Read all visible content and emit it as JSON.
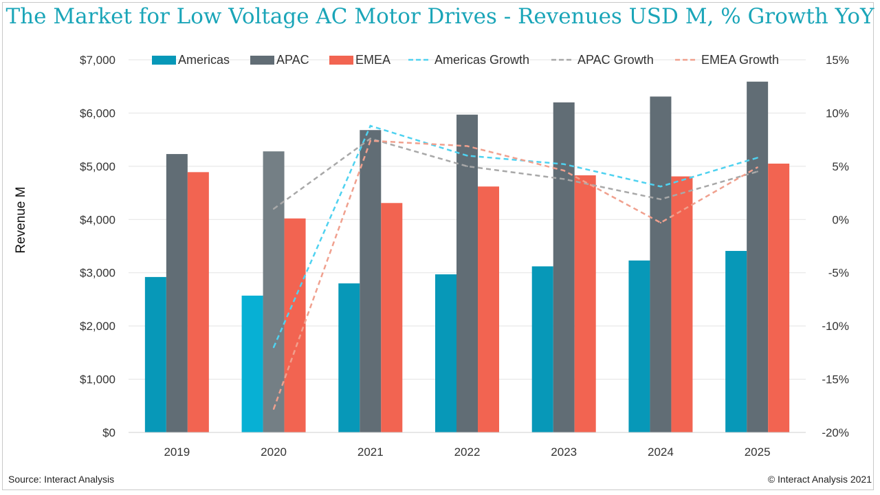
{
  "title": "The Market for Low Voltage AC Motor Drives - Revenues USD M, % Growth YoY",
  "source": "Source: Interact Analysis",
  "copyright": "© Interact Analysis 2021",
  "colors": {
    "americas": "#0798b8",
    "americas_2020": "#07b0d4",
    "apac": "#616d75",
    "apac_2020": "#747f85",
    "emea": "#f26451",
    "americas_growth": "#4fd2f0",
    "apac_growth": "#a8a8a8",
    "emea_growth": "#f0a08e",
    "title": "#1aa5b8"
  },
  "chart_data": {
    "type": "bar",
    "title": "The Market for Low Voltage AC Motor Drives - Revenues USD M, % Growth YoY",
    "categories": [
      "2019",
      "2020",
      "2021",
      "2022",
      "2023",
      "2024",
      "2025"
    ],
    "series": [
      {
        "name": "Americas",
        "kind": "bar",
        "axis": "left",
        "values": [
          2920,
          2570,
          2800,
          2970,
          3120,
          3230,
          3410
        ]
      },
      {
        "name": "APAC",
        "kind": "bar",
        "axis": "left",
        "values": [
          5230,
          5280,
          5680,
          5970,
          6200,
          6310,
          6590
        ]
      },
      {
        "name": "EMEA",
        "kind": "bar",
        "axis": "left",
        "values": [
          4890,
          4020,
          4310,
          4620,
          4830,
          4810,
          5050
        ]
      },
      {
        "name": "Americas Growth",
        "kind": "line",
        "axis": "right",
        "values": [
          null,
          -12.0,
          8.8,
          6.0,
          5.2,
          3.1,
          5.8
        ]
      },
      {
        "name": "APAC Growth",
        "kind": "line",
        "axis": "right",
        "values": [
          null,
          1.0,
          7.6,
          5.0,
          3.8,
          1.9,
          4.5
        ]
      },
      {
        "name": "EMEA Growth",
        "kind": "line",
        "axis": "right",
        "values": [
          null,
          -17.8,
          7.4,
          6.9,
          4.6,
          -0.3,
          4.9
        ]
      }
    ],
    "ylabel": "Revenue M",
    "ylim": [
      0,
      7000
    ],
    "yticks": [
      0,
      1000,
      2000,
      3000,
      4000,
      5000,
      6000,
      7000
    ],
    "ytick_labels": [
      "$0",
      "$1,000",
      "$2,000",
      "$3,000",
      "$4,000",
      "$5,000",
      "$6,000",
      "$7,000"
    ],
    "y2lim": [
      -20,
      15
    ],
    "y2ticks": [
      -20,
      -15,
      -10,
      -5,
      0,
      5,
      10,
      15
    ],
    "y2tick_labels": [
      "-20%",
      "-15%",
      "-10%",
      "-5%",
      "0%",
      "5%",
      "10%",
      "15%"
    ],
    "legend": [
      "Americas",
      "APAC",
      "EMEA",
      "Americas Growth",
      "APAC Growth",
      "EMEA Growth"
    ],
    "legend_position": "top",
    "grid": true
  }
}
